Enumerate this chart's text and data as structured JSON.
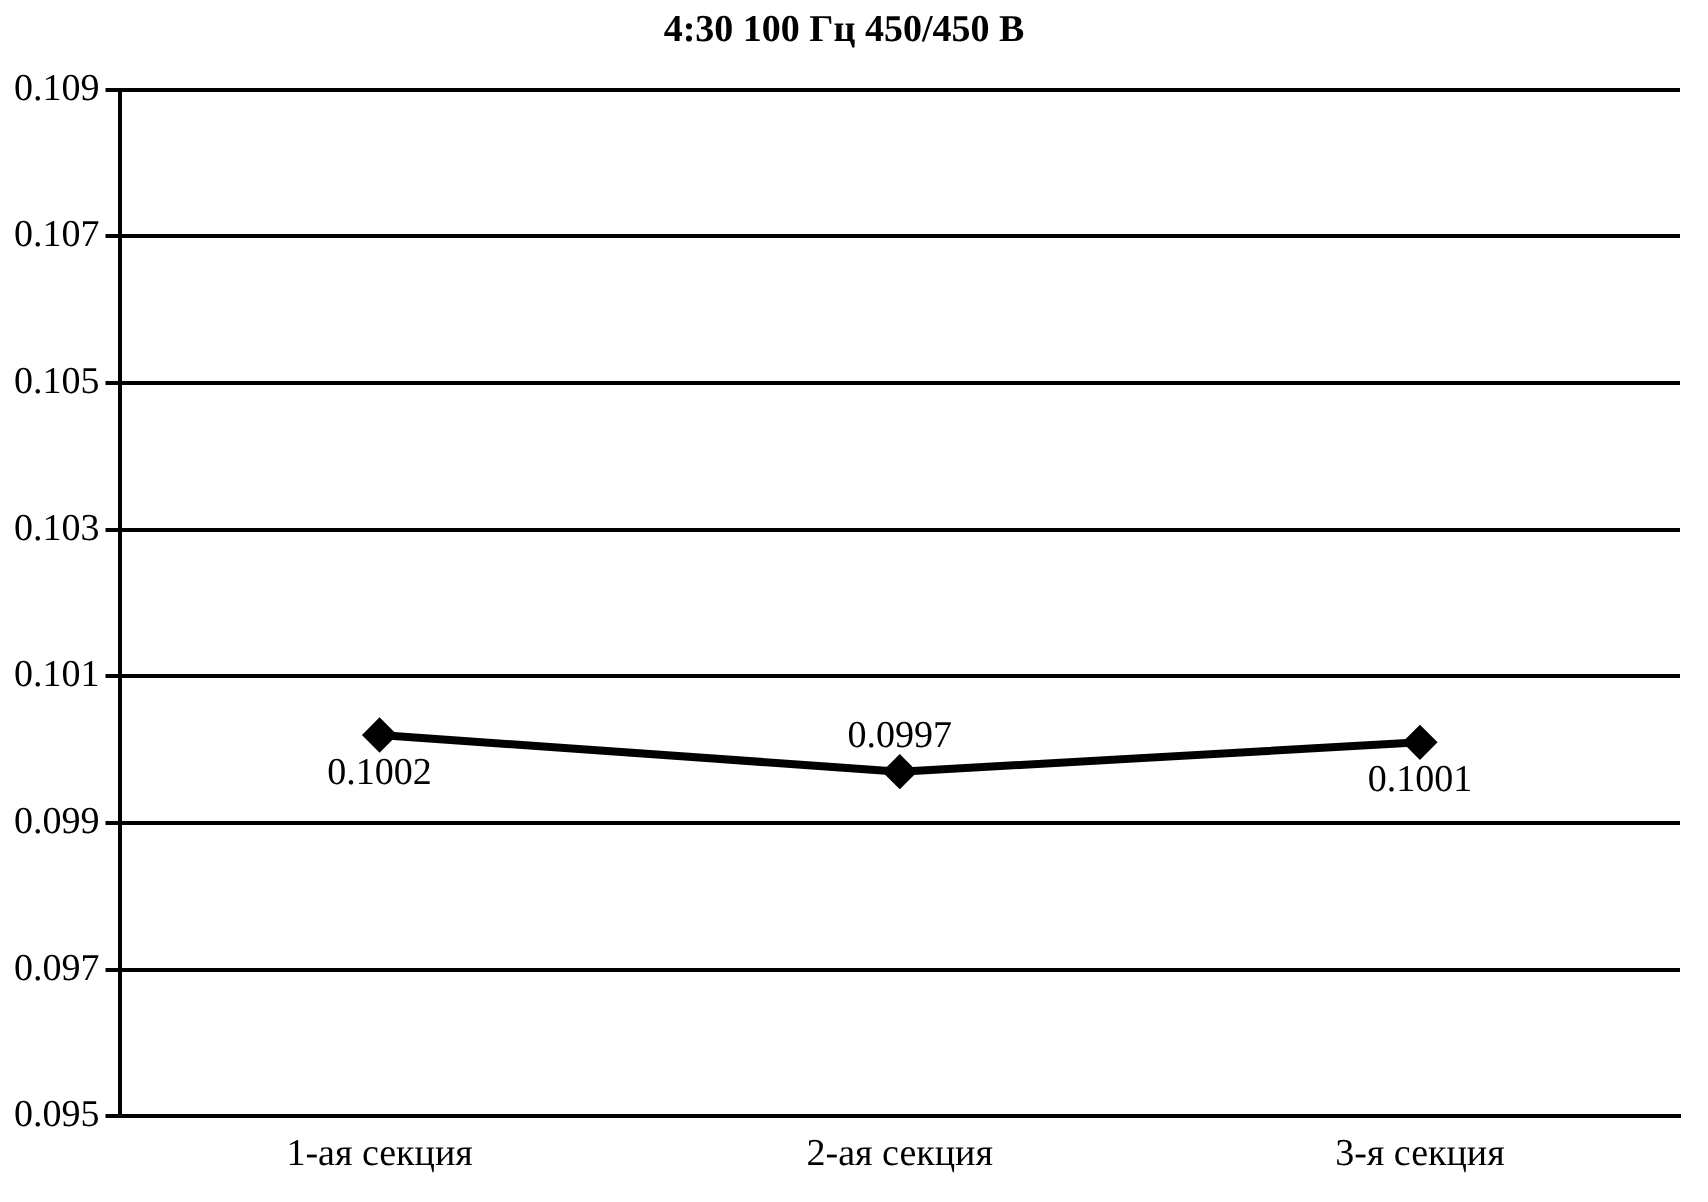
{
  "chart_data": {
    "type": "line",
    "title": "4:30 100 Гц 450/450 В",
    "categories": [
      "1-ая секция",
      "2-ая секция",
      "3-я секция"
    ],
    "series": [
      {
        "color": "#000000",
        "values": [
          0.1002,
          0.0997,
          0.1001
        ]
      }
    ],
    "ylim": [
      0.095,
      0.109
    ],
    "yticks": [
      0.095,
      0.097,
      0.099,
      0.101,
      0.103,
      0.105,
      0.107,
      0.109
    ],
    "grid": "y",
    "legend": false,
    "marker": "diamond",
    "line_style": "solid",
    "data_labels": true
  }
}
